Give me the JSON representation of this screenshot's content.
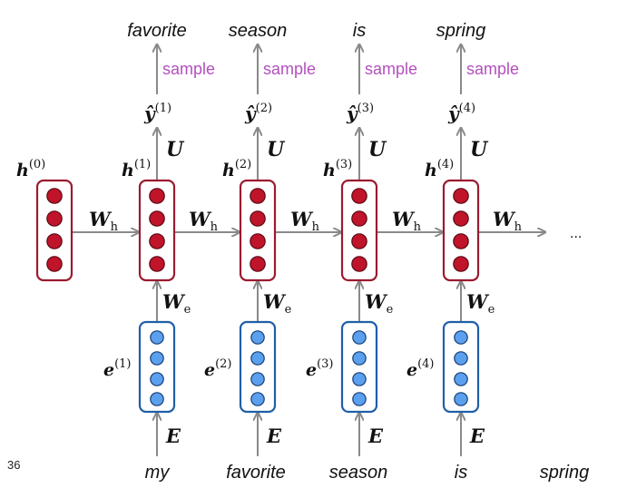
{
  "slide_number": "36",
  "output_words": [
    "favorite",
    "season",
    "is",
    "spring"
  ],
  "input_words": [
    "my",
    "favorite",
    "season",
    "is",
    "spring"
  ],
  "sample_label": "sample",
  "continuation": "...",
  "symbols": {
    "hidden": "h",
    "embedding": "e",
    "output": "ŷ",
    "U": "U",
    "W": "W",
    "W_h_sub": "h",
    "W_e_sub": "e",
    "E": "E"
  },
  "hidden_superscripts": [
    "(0)",
    "(1)",
    "(2)",
    "(3)",
    "(4)"
  ],
  "embedding_superscripts": [
    "(1)",
    "(2)",
    "(3)",
    "(4)"
  ],
  "output_superscripts": [
    "(1)",
    "(2)",
    "(3)",
    "(4)"
  ],
  "colors": {
    "hidden_border": "#9b1b30",
    "hidden_dot": "#c0142a",
    "embedding_border": "#1f5fa8",
    "embedding_dot": "#5aa0ee",
    "arrow": "#8a8a8a",
    "sample_text": "#b44fbf"
  }
}
